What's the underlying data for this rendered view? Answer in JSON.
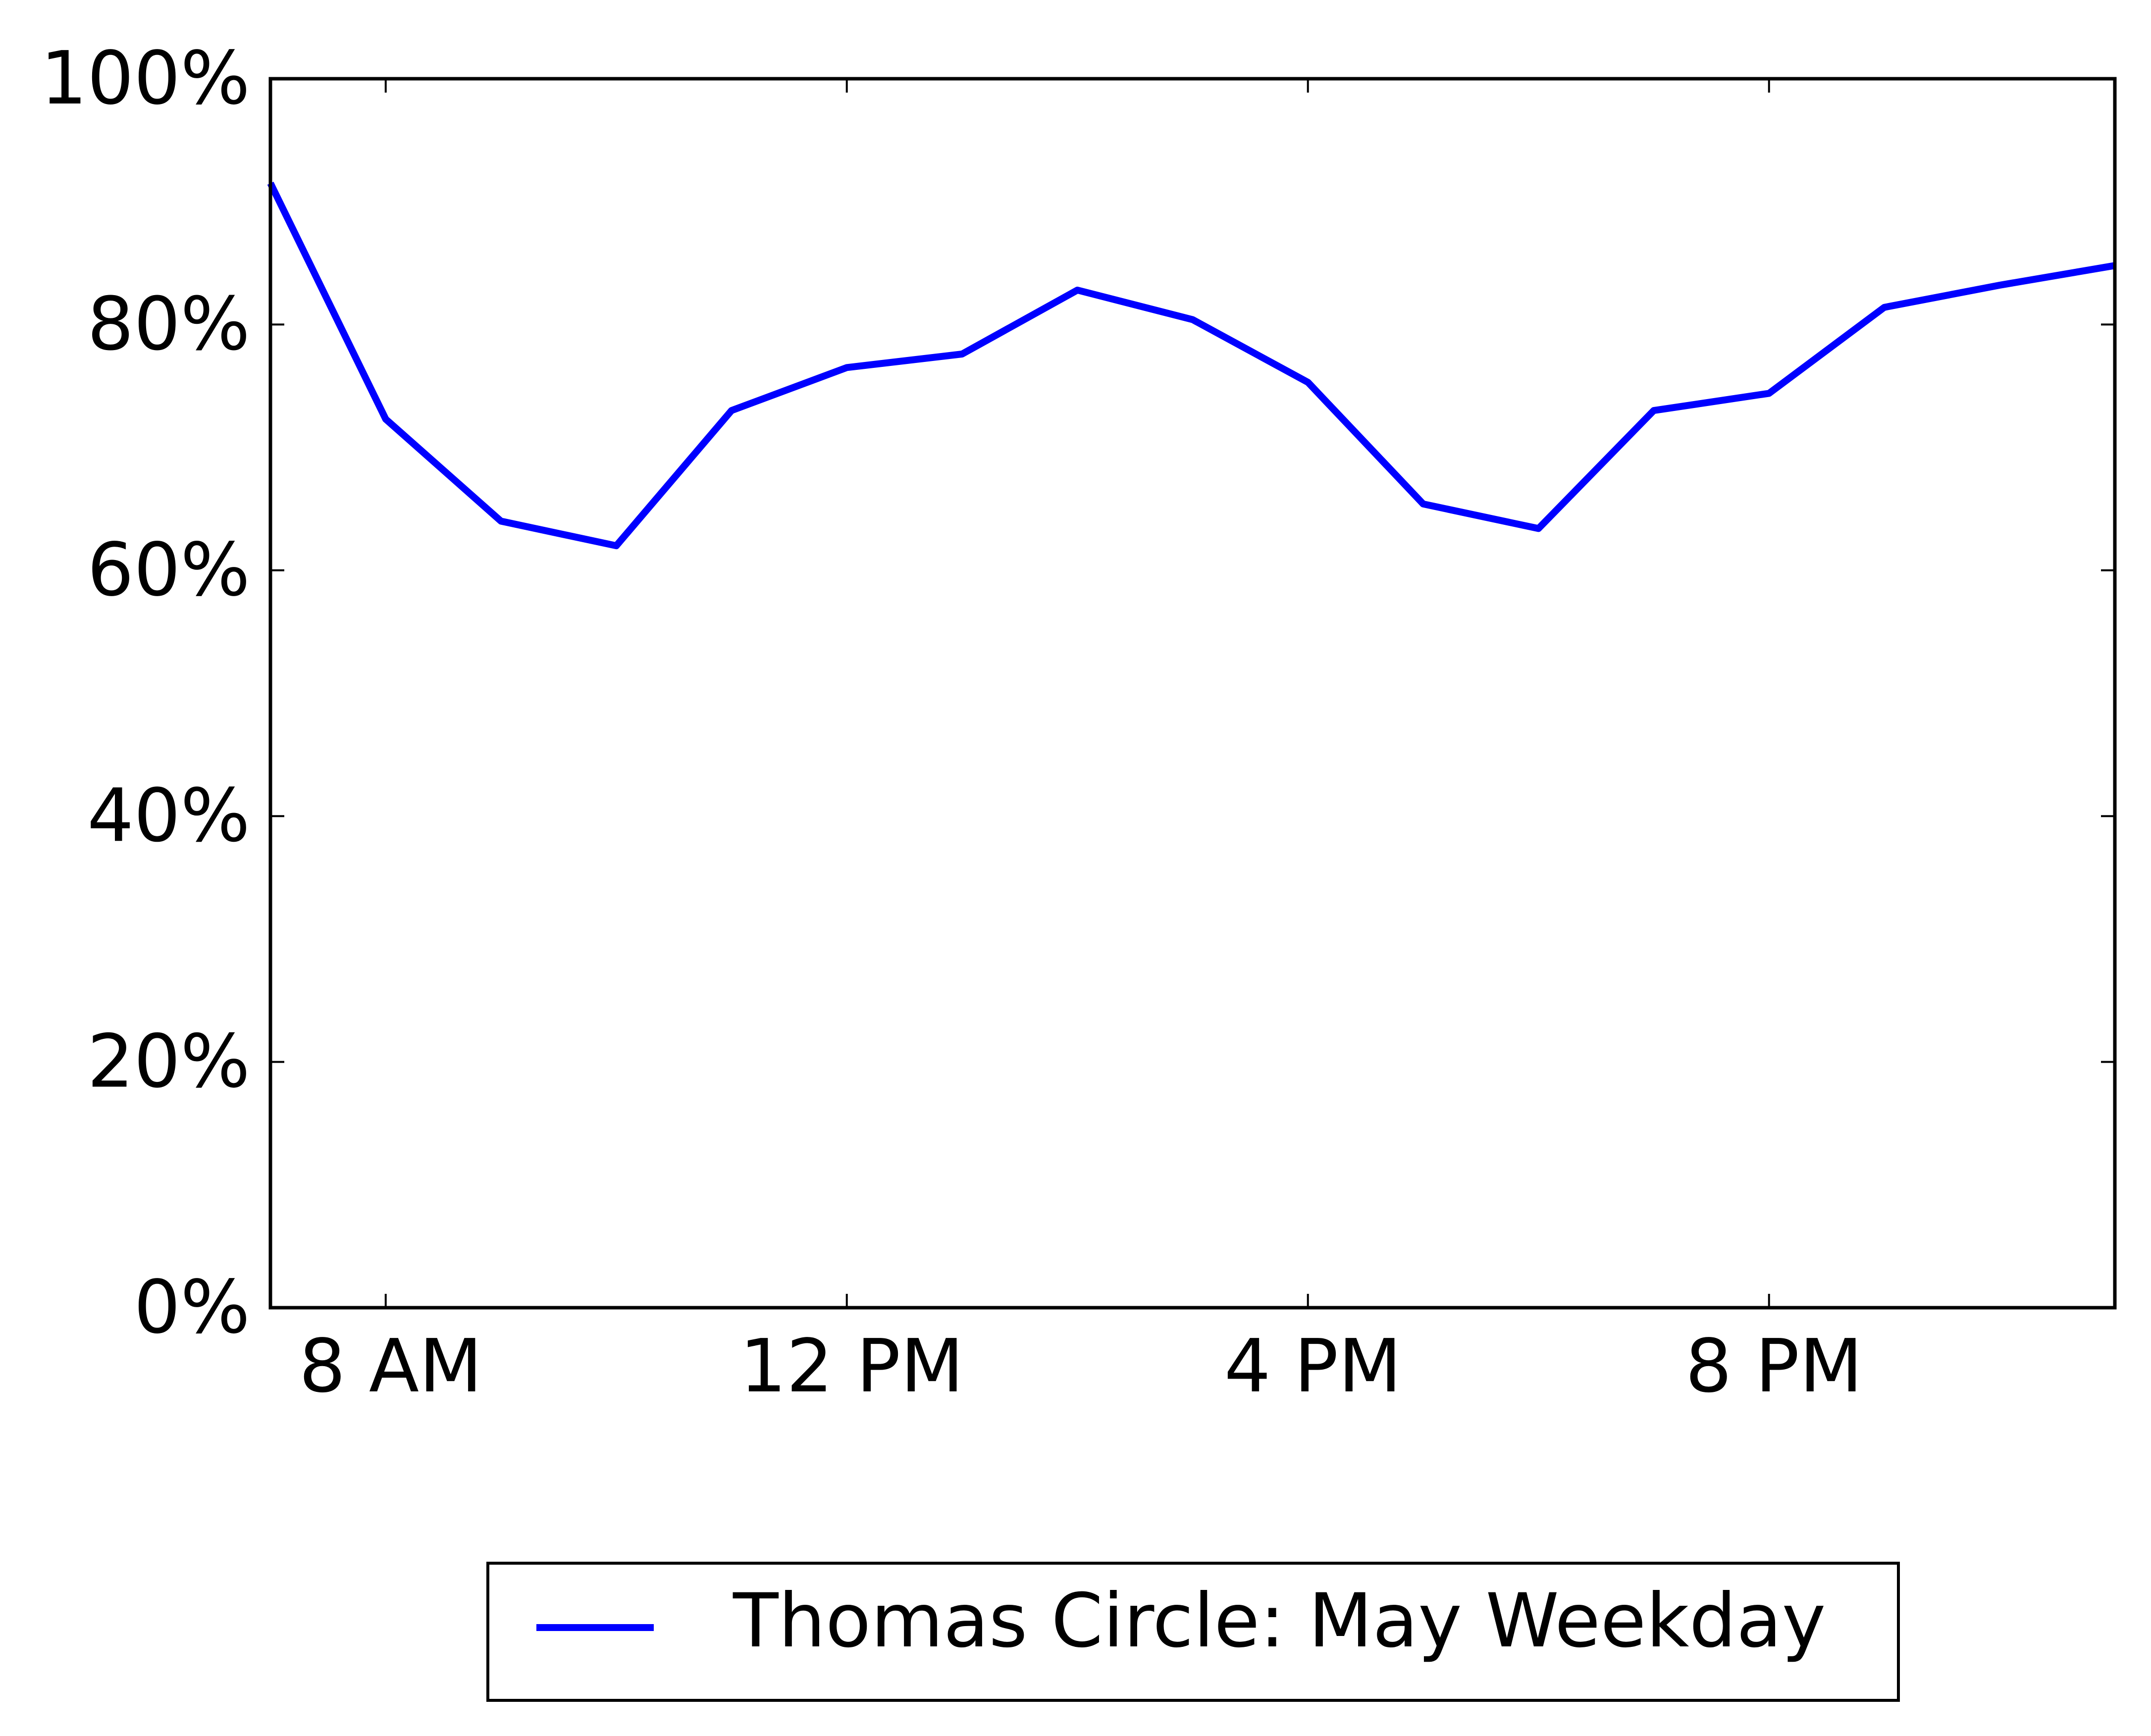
{
  "chart_data": {
    "type": "line",
    "title": "",
    "xlabel": "",
    "ylabel": "",
    "x": [
      "7 AM",
      "8 AM",
      "9 AM",
      "10 AM",
      "11 AM",
      "12 PM",
      "1 PM",
      "2 PM",
      "3 PM",
      "4 PM",
      "5 PM",
      "6 PM",
      "7 PM",
      "8 PM",
      "9 PM",
      "10 PM",
      "11 PM"
    ],
    "x_hours": [
      7,
      8,
      9,
      10,
      11,
      12,
      13,
      14,
      15,
      16,
      17,
      18,
      19,
      20,
      21,
      22,
      23
    ],
    "xlim": [
      7,
      23
    ],
    "ylim": [
      0,
      100
    ],
    "xticks": [
      {
        "hour": 8,
        "label": "8 AM"
      },
      {
        "hour": 12,
        "label": "12 PM"
      },
      {
        "hour": 16,
        "label": "4 PM"
      },
      {
        "hour": 20,
        "label": "8 PM"
      }
    ],
    "yticks": [
      {
        "value": 0,
        "label": "0%"
      },
      {
        "value": 20,
        "label": "20%"
      },
      {
        "value": 40,
        "label": "40%"
      },
      {
        "value": 60,
        "label": "60%"
      },
      {
        "value": 80,
        "label": "80%"
      },
      {
        "value": 100,
        "label": "100%"
      }
    ],
    "grid": false,
    "legend_position": "bottom-center, below the plot",
    "series": [
      {
        "name": "Thomas Circle: May Weekday",
        "color": "#0000ff",
        "values": [
          91.5,
          72.3,
          64.0,
          62.0,
          73.0,
          76.5,
          77.6,
          82.8,
          80.4,
          75.3,
          65.4,
          63.4,
          73.0,
          74.4,
          81.4,
          83.2,
          84.8
        ]
      }
    ]
  }
}
